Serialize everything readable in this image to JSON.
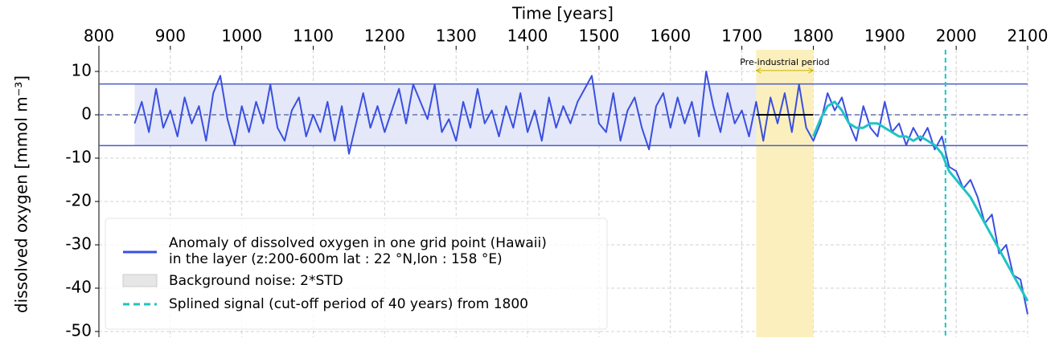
{
  "chart_data": {
    "type": "line",
    "xlabel": "Time [years]",
    "ylabel": "dissolved oxygen [mmol m⁻³]",
    "xlim": [
      800,
      2100
    ],
    "xticks": [
      800,
      900,
      1000,
      1100,
      1200,
      1300,
      1400,
      1500,
      1600,
      1700,
      1800,
      1900,
      2000,
      2100
    ],
    "ylim": [
      -51.3,
      15
    ],
    "yticks": [
      10,
      0,
      -10,
      -20,
      -30,
      -40,
      -50
    ],
    "grid": true,
    "series": [
      {
        "name": [
          "Anomaly of dissolved oxygen in one grid point (Hawaii)",
          "in the layer (z:200-600m lat : 22 °N,lon : 158 °E)"
        ],
        "color": "#3a4fe0",
        "style": "solid",
        "x": [
          850,
          860,
          870,
          880,
          890,
          900,
          910,
          920,
          930,
          940,
          950,
          960,
          970,
          980,
          990,
          1000,
          1010,
          1020,
          1030,
          1040,
          1050,
          1060,
          1070,
          1080,
          1090,
          1100,
          1110,
          1120,
          1130,
          1140,
          1150,
          1160,
          1170,
          1180,
          1190,
          1200,
          1210,
          1220,
          1230,
          1240,
          1250,
          1260,
          1270,
          1280,
          1290,
          1300,
          1310,
          1320,
          1330,
          1340,
          1350,
          1360,
          1370,
          1380,
          1390,
          1400,
          1410,
          1420,
          1430,
          1440,
          1450,
          1460,
          1470,
          1480,
          1490,
          1500,
          1510,
          1520,
          1530,
          1540,
          1550,
          1560,
          1570,
          1580,
          1590,
          1600,
          1610,
          1620,
          1630,
          1640,
          1650,
          1660,
          1670,
          1680,
          1690,
          1700,
          1710,
          1720,
          1730,
          1740,
          1750,
          1760,
          1770,
          1780,
          1790,
          1800,
          1810,
          1820,
          1830,
          1840,
          1850,
          1860,
          1870,
          1880,
          1890,
          1900,
          1910,
          1920,
          1930,
          1940,
          1950,
          1960,
          1970,
          1980,
          1990,
          2000,
          2010,
          2020,
          2030,
          2040,
          2050,
          2060,
          2070,
          2080,
          2090,
          2100
        ],
        "values": [
          -2,
          3,
          -4,
          6,
          -3,
          1,
          -5,
          4,
          -2,
          2,
          -6,
          5,
          9,
          -1,
          -7,
          2,
          -4,
          3,
          -2,
          7,
          -3,
          -6,
          1,
          4,
          -5,
          0,
          -4,
          3,
          -6,
          2,
          -9,
          -2,
          5,
          -3,
          2,
          -4,
          1,
          6,
          -2,
          7,
          3,
          -1,
          7,
          -4,
          -1,
          -6,
          3,
          -3,
          6,
          -2,
          1,
          -5,
          2,
          -3,
          5,
          -4,
          1,
          -6,
          4,
          -3,
          2,
          -2,
          3,
          6,
          9,
          -2,
          -4,
          5,
          -6,
          1,
          4,
          -3,
          -8,
          2,
          5,
          -3,
          4,
          -2,
          3,
          -5,
          10,
          2,
          -4,
          5,
          -2,
          1,
          -5,
          3,
          -6,
          4,
          -2,
          5,
          -4,
          7,
          -3,
          -6,
          -2,
          5,
          1,
          4,
          -2,
          -6,
          2,
          -3,
          -5,
          3,
          -4,
          -2,
          -7,
          -3,
          -6,
          -3,
          -8,
          -5,
          -12,
          -13,
          -17,
          -15,
          -19,
          -25,
          -23,
          -32,
          -30,
          -37,
          -38,
          -46
        ]
      },
      {
        "name": [
          "Splined signal (cut-off period of 40 years) from 1800"
        ],
        "color": "#1fc4c4",
        "style": "dashed",
        "x": [
          1800,
          1810,
          1820,
          1830,
          1840,
          1850,
          1860,
          1870,
          1880,
          1890,
          1900,
          1910,
          1920,
          1930,
          1940,
          1950,
          1960,
          1970,
          1980,
          1990,
          2000,
          2010,
          2020,
          2030,
          2040,
          2050,
          2060,
          2070,
          2080,
          2090,
          2100
        ],
        "values": [
          -5,
          -1,
          2,
          3,
          1,
          -2,
          -3,
          -3,
          -2,
          -2,
          -3,
          -4,
          -5,
          -5,
          -6,
          -5,
          -6,
          -7,
          -9,
          -13,
          -15,
          -17,
          -19,
          -22,
          -25,
          -28,
          -31,
          -34,
          -37,
          -40,
          -43
        ]
      }
    ],
    "band": {
      "name": "Background noise: 2*STD",
      "x": [
        850,
        1800
      ],
      "y": [
        -7.1,
        7.1
      ],
      "color": "#e4e8f8"
    },
    "band_lines": {
      "values": [
        7.1,
        -7.1
      ],
      "color": "#4a5cc8"
    },
    "zero_line": {
      "value": 0,
      "color": "#6670b0"
    },
    "highlight": {
      "x": [
        1720,
        1800
      ],
      "color": "#fbf0bd",
      "label": "Pre-industrial period",
      "arrow_y": 10.2,
      "arrow_color": "#c8b400"
    },
    "baseline": {
      "x": [
        1720,
        1800
      ],
      "y": 0,
      "color": "#000000"
    },
    "vline": {
      "x": 1985,
      "color": "#1fc4c4"
    }
  }
}
